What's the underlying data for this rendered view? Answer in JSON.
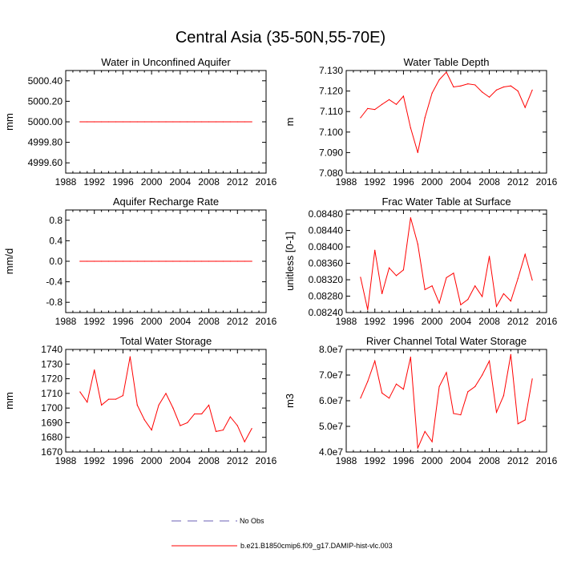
{
  "title": "Central Asia (35-50N,55-70E)",
  "line_color": "#ff0000",
  "obs_color": "#6b5fb5",
  "legend": {
    "obs_label": "No Obs",
    "model_label": "b.e21.B1850cmip6.f09_g17.DAMIP-hist-vlc.003"
  },
  "chart_data": [
    {
      "type": "line",
      "title": "Water in Unconfined Aquifer",
      "ylabel": "mm",
      "xlim": [
        1988,
        2016
      ],
      "xticks": [
        "1988",
        "1992",
        "1996",
        "2000",
        "2004",
        "2008",
        "2012",
        "2016"
      ],
      "ylim": [
        4999.5,
        5000.5
      ],
      "yticks": [
        "4999.60",
        "4999.80",
        "5000.00",
        "5000.20",
        "5000.40"
      ],
      "series": [
        {
          "x": [
            1990,
            1991,
            1992,
            1993,
            1994,
            1995,
            1996,
            1997,
            1998,
            1999,
            2000,
            2001,
            2002,
            2003,
            2004,
            2005,
            2006,
            2007,
            2008,
            2009,
            2010,
            2011,
            2012,
            2013,
            2014
          ],
          "values": [
            5000,
            5000,
            5000,
            5000,
            5000,
            5000,
            5000,
            5000,
            5000,
            5000,
            5000,
            5000,
            5000,
            5000,
            5000,
            5000,
            5000,
            5000,
            5000,
            5000,
            5000,
            5000,
            5000,
            5000,
            5000
          ]
        }
      ]
    },
    {
      "type": "line",
      "title": "Water Table Depth",
      "ylabel": "m",
      "xlim": [
        1988,
        2016
      ],
      "xticks": [
        "1988",
        "1992",
        "1996",
        "2000",
        "2004",
        "2008",
        "2012",
        "2016"
      ],
      "ylim": [
        7.08,
        7.13
      ],
      "yticks": [
        "7.080",
        "7.090",
        "7.100",
        "7.110",
        "7.120",
        "7.130"
      ],
      "series": [
        {
          "x": [
            1990,
            1991,
            1992,
            1993,
            1994,
            1995,
            1996,
            1997,
            1998,
            1999,
            2000,
            2001,
            2002,
            2003,
            2004,
            2005,
            2006,
            2007,
            2008,
            2009,
            2010,
            2011,
            2012,
            2013,
            2014
          ],
          "values": [
            7.107,
            7.1115,
            7.111,
            7.1135,
            7.1158,
            7.1135,
            7.1175,
            7.102,
            7.09,
            7.107,
            7.119,
            7.1255,
            7.1292,
            7.122,
            7.1225,
            7.1235,
            7.123,
            7.1195,
            7.117,
            7.1205,
            7.122,
            7.1225,
            7.12,
            7.112,
            7.1205
          ]
        }
      ]
    },
    {
      "type": "line",
      "title": "Aquifer Recharge Rate",
      "ylabel": "mm/d",
      "xlim": [
        1988,
        2016
      ],
      "xticks": [
        "1988",
        "1992",
        "1996",
        "2000",
        "2004",
        "2008",
        "2012",
        "2016"
      ],
      "ylim": [
        -1.0,
        1.0
      ],
      "yticks": [
        "-0.8",
        "-0.4",
        "0.0",
        "0.4",
        "0.8"
      ],
      "series": [
        {
          "x": [
            1990,
            1991,
            1992,
            1993,
            1994,
            1995,
            1996,
            1997,
            1998,
            1999,
            2000,
            2001,
            2002,
            2003,
            2004,
            2005,
            2006,
            2007,
            2008,
            2009,
            2010,
            2011,
            2012,
            2013,
            2014
          ],
          "values": [
            0,
            0,
            0,
            0,
            0,
            0,
            0,
            0,
            0,
            0,
            0,
            0,
            0,
            0,
            0,
            0,
            0,
            0,
            0,
            0,
            0,
            0,
            0,
            0,
            0
          ]
        }
      ]
    },
    {
      "type": "line",
      "title": "Frac Water Table at Surface",
      "ylabel": "unitless [0-1]",
      "xlim": [
        1988,
        2016
      ],
      "xticks": [
        "1988",
        "1992",
        "1996",
        "2000",
        "2004",
        "2008",
        "2012",
        "2016"
      ],
      "ylim": [
        0.0824,
        0.0849
      ],
      "yticks": [
        "0.08240",
        "0.08280",
        "0.08320",
        "0.08360",
        "0.08400",
        "0.08440",
        "0.08480"
      ],
      "series": [
        {
          "x": [
            1990,
            1991,
            1992,
            1993,
            1994,
            1995,
            1996,
            1997,
            1998,
            1999,
            2000,
            2001,
            2002,
            2003,
            2004,
            2005,
            2006,
            2007,
            2008,
            2009,
            2010,
            2011,
            2012,
            2013,
            2014
          ],
          "values": [
            0.08326,
            0.08247,
            0.08392,
            0.08286,
            0.08349,
            0.0833,
            0.08344,
            0.08471,
            0.08407,
            0.08296,
            0.08305,
            0.08263,
            0.08325,
            0.08336,
            0.08259,
            0.08272,
            0.08305,
            0.08279,
            0.08377,
            0.08255,
            0.08286,
            0.08268,
            0.08323,
            0.08382,
            0.08319
          ]
        }
      ]
    },
    {
      "type": "line",
      "title": "Total Water Storage",
      "ylabel": "mm",
      "xlim": [
        1988,
        2016
      ],
      "xticks": [
        "1988",
        "1992",
        "1996",
        "2000",
        "2004",
        "2008",
        "2012",
        "2016"
      ],
      "ylim": [
        1670,
        1740
      ],
      "yticks": [
        "1670",
        "1680",
        "1690",
        "1700",
        "1710",
        "1720",
        "1730",
        "1740"
      ],
      "series": [
        {
          "x": [
            1990,
            1991,
            1992,
            1993,
            1994,
            1995,
            1996,
            1997,
            1998,
            1999,
            2000,
            2001,
            2002,
            2003,
            2004,
            2005,
            2006,
            2007,
            2008,
            2009,
            2010,
            2011,
            2012,
            2013,
            2014
          ],
          "values": [
            1711,
            1704,
            1726,
            1702,
            1706,
            1706,
            1708.5,
            1735,
            1702,
            1692,
            1685,
            1702,
            1710,
            1700,
            1688,
            1690,
            1696,
            1696,
            1702,
            1684,
            1685,
            1694,
            1688,
            1677,
            1686
          ]
        }
      ]
    },
    {
      "type": "line",
      "title": "River Channel Total Water Storage",
      "ylabel": "m3",
      "xlim": [
        1988,
        2016
      ],
      "xticks": [
        "1988",
        "1992",
        "1996",
        "2000",
        "2004",
        "2008",
        "2012",
        "2016"
      ],
      "ylim": [
        40000000,
        80000000
      ],
      "yticks": [
        "4.0e7",
        "5.0e7",
        "6.0e7",
        "7.0e7",
        "8.0e7"
      ],
      "series": [
        {
          "x": [
            1990,
            1991,
            1992,
            1993,
            1994,
            1995,
            1996,
            1997,
            1998,
            1999,
            2000,
            2001,
            2002,
            2003,
            2004,
            2005,
            2006,
            2007,
            2008,
            2009,
            2010,
            2011,
            2012,
            2013,
            2014
          ],
          "values": [
            61000000,
            67500000,
            75500000,
            63000000,
            61000000,
            66500000,
            64500000,
            77000000,
            41500000,
            48000000,
            44000000,
            65500000,
            71000000,
            55000000,
            54500000,
            63500000,
            65500000,
            70000000,
            75500000,
            55500000,
            62000000,
            78000000,
            51000000,
            52500000,
            68500000
          ]
        }
      ]
    }
  ]
}
